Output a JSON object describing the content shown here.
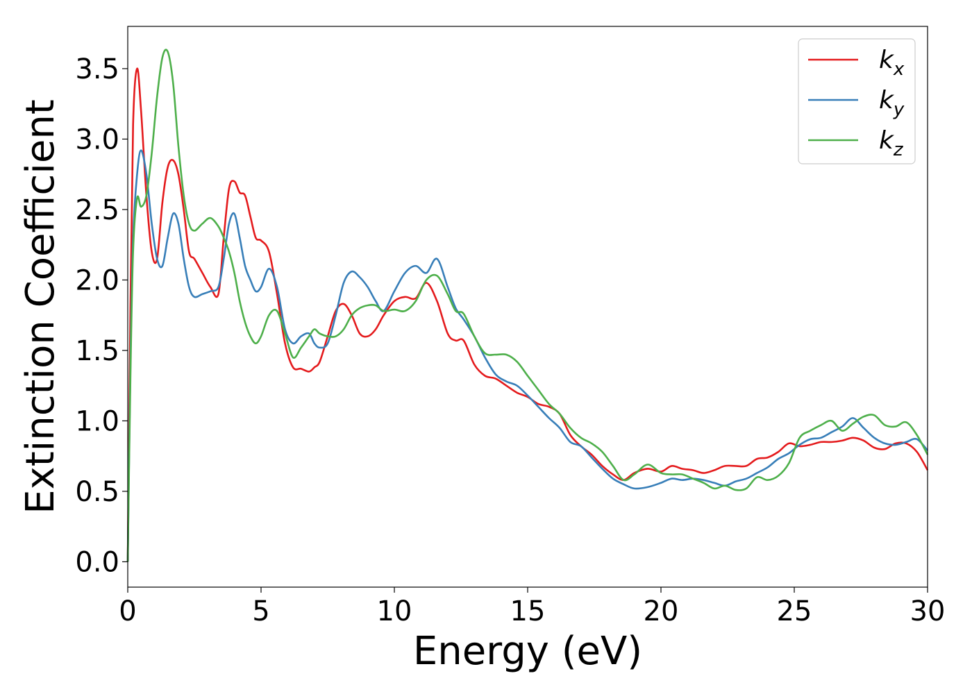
{
  "chart_data": {
    "type": "line",
    "title": "",
    "xlabel": "Energy (eV)",
    "ylabel": "Extinction Coefficient",
    "xlim": [
      0,
      30
    ],
    "ylim": [
      -0.18,
      3.8
    ],
    "xticks": [
      0,
      5,
      10,
      15,
      20,
      25,
      30
    ],
    "xtick_labels": [
      "0",
      "5",
      "10",
      "15",
      "20",
      "25",
      "30"
    ],
    "yticks": [
      0.0,
      0.5,
      1.0,
      1.5,
      2.0,
      2.5,
      3.0,
      3.5
    ],
    "ytick_labels": [
      "0.0",
      "0.5",
      "1.0",
      "1.5",
      "2.0",
      "2.5",
      "3.0",
      "3.5"
    ],
    "grid": false,
    "legend_position": "top-right",
    "series": [
      {
        "name": "k_x",
        "legend_base": "k",
        "legend_sub": "x",
        "color": "#e41a1c",
        "x": [
          0,
          0.1,
          0.2,
          0.35,
          0.5,
          0.7,
          0.9,
          1.1,
          1.3,
          1.5,
          1.7,
          1.9,
          2.1,
          2.3,
          2.5,
          2.8,
          3.1,
          3.4,
          3.6,
          3.8,
          4.0,
          4.2,
          4.4,
          4.6,
          4.8,
          5.0,
          5.3,
          5.6,
          5.9,
          6.2,
          6.5,
          6.8,
          7.0,
          7.2,
          7.5,
          7.8,
          8.1,
          8.4,
          8.7,
          9.0,
          9.3,
          9.6,
          10.0,
          10.4,
          10.8,
          11.2,
          11.6,
          12.0,
          12.3,
          12.6,
          13.0,
          13.4,
          13.8,
          14.2,
          14.6,
          15.0,
          15.4,
          15.8,
          16.2,
          16.6,
          17.0,
          17.4,
          17.8,
          18.2,
          18.6,
          19.0,
          19.5,
          20.0,
          20.4,
          20.8,
          21.2,
          21.6,
          22.0,
          22.4,
          22.8,
          23.2,
          23.6,
          24.0,
          24.4,
          24.8,
          25.2,
          25.6,
          26.0,
          26.4,
          26.8,
          27.2,
          27.6,
          28.0,
          28.4,
          28.8,
          29.2,
          29.6,
          30.0
        ],
        "y": [
          0.0,
          1.8,
          3.1,
          3.5,
          3.2,
          2.6,
          2.2,
          2.15,
          2.55,
          2.8,
          2.85,
          2.75,
          2.5,
          2.2,
          2.15,
          2.05,
          1.95,
          1.9,
          2.3,
          2.65,
          2.7,
          2.62,
          2.6,
          2.45,
          2.3,
          2.28,
          2.2,
          1.9,
          1.55,
          1.38,
          1.37,
          1.35,
          1.38,
          1.42,
          1.6,
          1.78,
          1.83,
          1.75,
          1.62,
          1.6,
          1.65,
          1.75,
          1.85,
          1.88,
          1.87,
          1.98,
          1.85,
          1.62,
          1.57,
          1.57,
          1.4,
          1.32,
          1.3,
          1.25,
          1.2,
          1.17,
          1.12,
          1.1,
          1.05,
          0.9,
          0.82,
          0.76,
          0.68,
          0.62,
          0.58,
          0.63,
          0.66,
          0.64,
          0.68,
          0.66,
          0.65,
          0.63,
          0.65,
          0.68,
          0.68,
          0.68,
          0.73,
          0.74,
          0.78,
          0.84,
          0.82,
          0.83,
          0.85,
          0.85,
          0.86,
          0.88,
          0.86,
          0.81,
          0.8,
          0.84,
          0.84,
          0.78,
          0.65
        ]
      },
      {
        "name": "k_y",
        "legend_base": "k",
        "legend_sub": "y",
        "color": "#377eb8",
        "x": [
          0,
          0.1,
          0.2,
          0.35,
          0.5,
          0.7,
          0.9,
          1.1,
          1.3,
          1.5,
          1.7,
          1.9,
          2.1,
          2.3,
          2.5,
          2.8,
          3.1,
          3.4,
          3.6,
          3.8,
          4.0,
          4.2,
          4.4,
          4.6,
          4.8,
          5.0,
          5.3,
          5.6,
          5.9,
          6.2,
          6.5,
          6.8,
          7.0,
          7.2,
          7.5,
          7.8,
          8.1,
          8.4,
          8.7,
          9.0,
          9.3,
          9.6,
          10.0,
          10.4,
          10.8,
          11.2,
          11.6,
          12.0,
          12.3,
          12.6,
          13.0,
          13.4,
          13.8,
          14.2,
          14.6,
          15.0,
          15.4,
          15.8,
          16.2,
          16.6,
          17.0,
          17.4,
          17.8,
          18.2,
          18.6,
          19.0,
          19.5,
          20.0,
          20.4,
          20.8,
          21.2,
          21.6,
          22.0,
          22.4,
          22.8,
          23.2,
          23.6,
          24.0,
          24.4,
          24.8,
          25.2,
          25.6,
          26.0,
          26.4,
          26.8,
          27.2,
          27.6,
          28.0,
          28.4,
          28.8,
          29.2,
          29.6,
          30.0
        ],
        "y": [
          0.0,
          1.4,
          2.3,
          2.75,
          2.92,
          2.75,
          2.4,
          2.15,
          2.1,
          2.3,
          2.47,
          2.4,
          2.15,
          1.95,
          1.88,
          1.9,
          1.92,
          1.95,
          2.15,
          2.4,
          2.47,
          2.3,
          2.1,
          2.0,
          1.92,
          1.95,
          2.08,
          1.95,
          1.65,
          1.55,
          1.6,
          1.62,
          1.55,
          1.52,
          1.55,
          1.75,
          1.98,
          2.06,
          2.02,
          1.95,
          1.85,
          1.78,
          1.92,
          2.05,
          2.1,
          2.05,
          2.15,
          1.95,
          1.8,
          1.72,
          1.6,
          1.45,
          1.33,
          1.28,
          1.25,
          1.18,
          1.1,
          1.02,
          0.95,
          0.85,
          0.82,
          0.74,
          0.66,
          0.59,
          0.55,
          0.52,
          0.53,
          0.56,
          0.59,
          0.58,
          0.59,
          0.58,
          0.56,
          0.54,
          0.57,
          0.59,
          0.63,
          0.67,
          0.73,
          0.77,
          0.83,
          0.87,
          0.88,
          0.92,
          0.96,
          1.02,
          0.95,
          0.88,
          0.84,
          0.83,
          0.85,
          0.87,
          0.79
        ]
      },
      {
        "name": "k_z",
        "legend_base": "k",
        "legend_sub": "z",
        "color": "#4daf4a",
        "x": [
          0,
          0.1,
          0.2,
          0.35,
          0.5,
          0.7,
          0.9,
          1.1,
          1.3,
          1.5,
          1.7,
          1.9,
          2.1,
          2.3,
          2.5,
          2.8,
          3.1,
          3.4,
          3.6,
          3.8,
          4.0,
          4.2,
          4.4,
          4.6,
          4.8,
          5.0,
          5.3,
          5.6,
          5.9,
          6.2,
          6.5,
          6.8,
          7.0,
          7.2,
          7.5,
          7.8,
          8.1,
          8.4,
          8.7,
          9.0,
          9.3,
          9.6,
          10.0,
          10.4,
          10.8,
          11.2,
          11.6,
          12.0,
          12.3,
          12.6,
          13.0,
          13.4,
          13.8,
          14.2,
          14.6,
          15.0,
          15.4,
          15.8,
          16.2,
          16.6,
          17.0,
          17.4,
          17.8,
          18.2,
          18.6,
          19.0,
          19.5,
          20.0,
          20.4,
          20.8,
          21.2,
          21.6,
          22.0,
          22.4,
          22.8,
          23.2,
          23.6,
          24.0,
          24.4,
          24.8,
          25.2,
          25.6,
          26.0,
          26.4,
          26.8,
          27.2,
          27.6,
          28.0,
          28.4,
          28.8,
          29.2,
          29.6,
          30.0
        ],
        "y": [
          0.0,
          1.3,
          2.2,
          2.58,
          2.52,
          2.6,
          2.9,
          3.3,
          3.58,
          3.62,
          3.4,
          2.95,
          2.6,
          2.4,
          2.35,
          2.4,
          2.44,
          2.38,
          2.3,
          2.2,
          2.05,
          1.85,
          1.7,
          1.6,
          1.55,
          1.6,
          1.75,
          1.78,
          1.62,
          1.45,
          1.52,
          1.6,
          1.65,
          1.62,
          1.6,
          1.6,
          1.65,
          1.75,
          1.8,
          1.82,
          1.82,
          1.78,
          1.79,
          1.78,
          1.85,
          2.0,
          2.03,
          1.9,
          1.78,
          1.76,
          1.6,
          1.48,
          1.47,
          1.47,
          1.42,
          1.32,
          1.22,
          1.12,
          1.05,
          0.95,
          0.88,
          0.84,
          0.78,
          0.68,
          0.58,
          0.62,
          0.69,
          0.63,
          0.62,
          0.62,
          0.59,
          0.56,
          0.52,
          0.54,
          0.51,
          0.52,
          0.6,
          0.58,
          0.61,
          0.7,
          0.88,
          0.93,
          0.97,
          1.0,
          0.93,
          0.98,
          1.03,
          1.04,
          0.97,
          0.96,
          0.99,
          0.9,
          0.76
        ]
      }
    ]
  }
}
